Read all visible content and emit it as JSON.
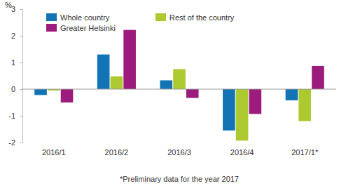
{
  "chart_data": {
    "type": "bar",
    "y_label": "%",
    "annotations": [
      "*Preliminary data for the year 2017"
    ],
    "categories": [
      "2016/1",
      "2016/2",
      "2016/3",
      "2016/4",
      "2017/1*"
    ],
    "series": [
      {
        "name": "Whole country",
        "color": "#1274b5",
        "values": [
          -0.22,
          1.3,
          0.33,
          -1.55,
          -0.42
        ]
      },
      {
        "name": "Rest of the country",
        "color": "#acc92f",
        "values": [
          -0.05,
          0.48,
          0.75,
          -1.93,
          -1.2
        ]
      },
      {
        "name": "Greater Helsinki",
        "color": "#9b1c7c",
        "values": [
          -0.5,
          2.22,
          -0.33,
          -0.93,
          0.87
        ]
      }
    ],
    "ylim": [
      -2,
      3
    ],
    "yticks": [
      -2,
      -1,
      0,
      1,
      2,
      3
    ],
    "legend": "top",
    "grid": false
  }
}
